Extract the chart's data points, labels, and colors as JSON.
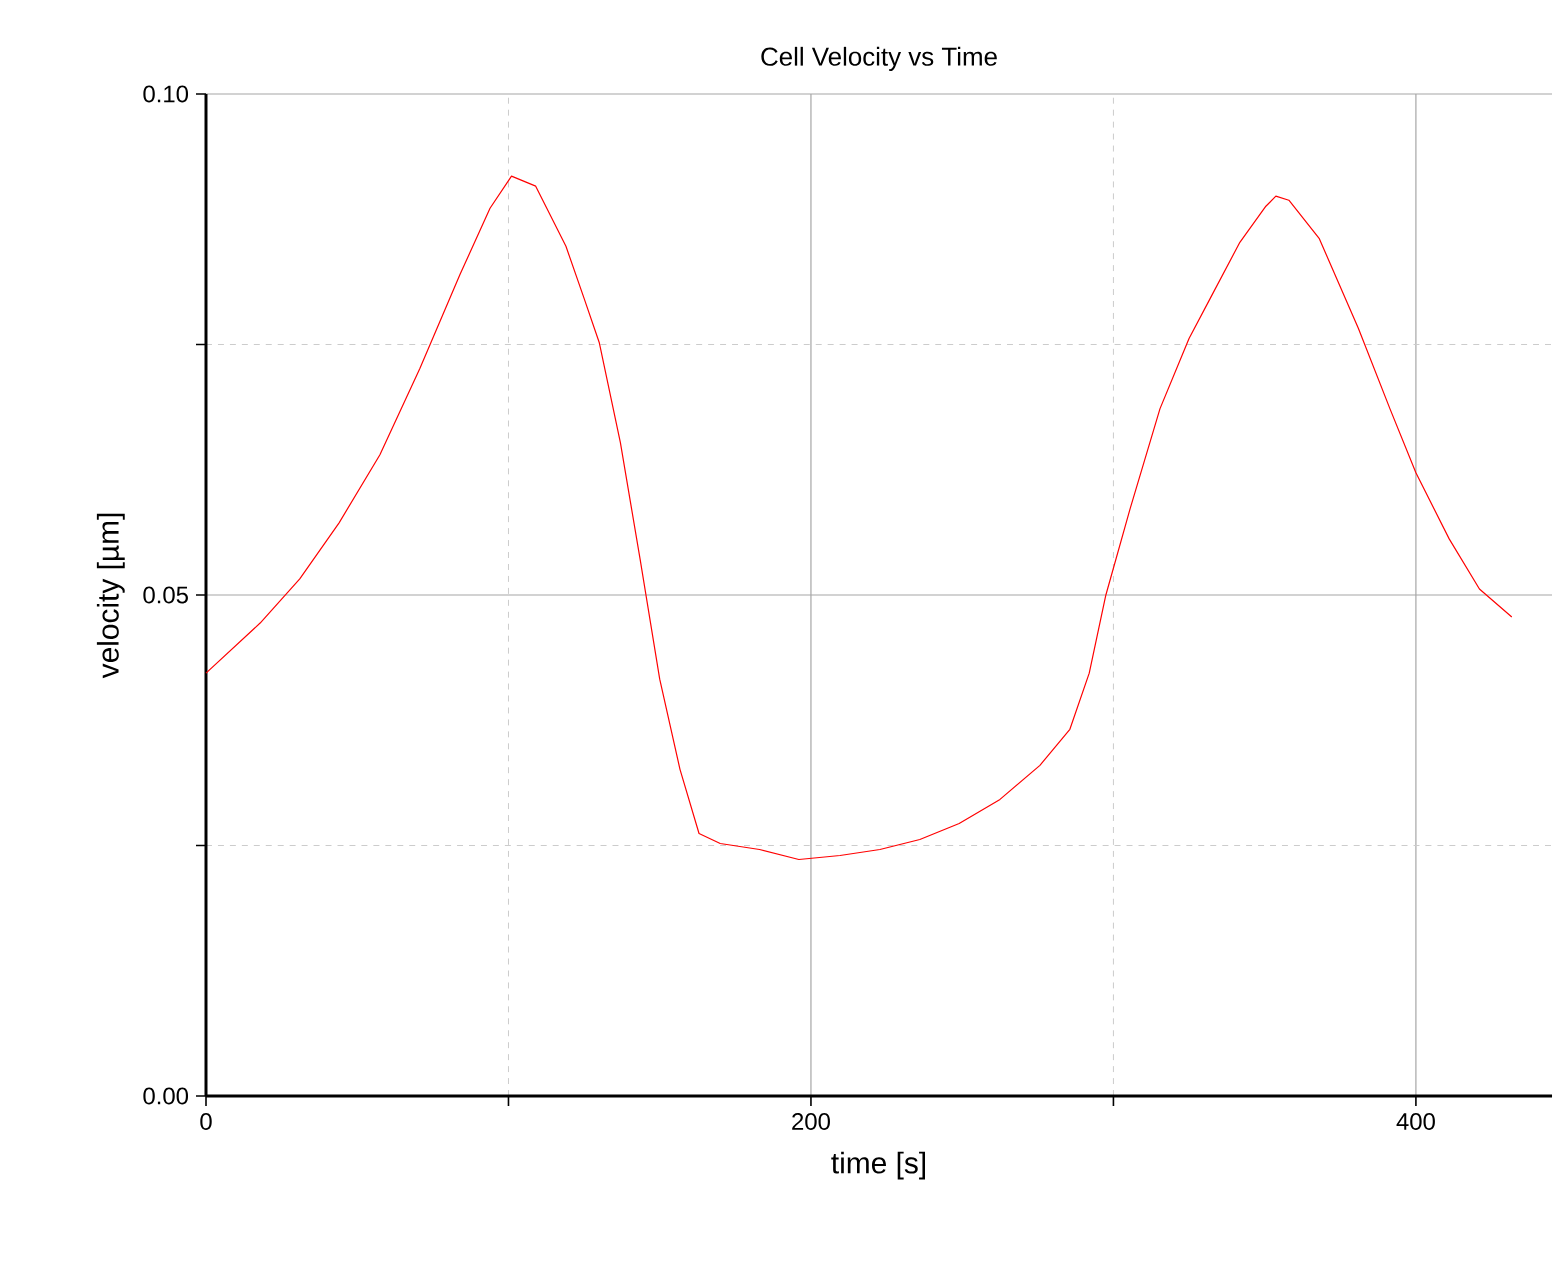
{
  "chart_data": {
    "type": "line",
    "title": "Cell Velocity vs Time",
    "xlabel": "time [s]",
    "ylabel": "velocity [µm]",
    "xlim": [
      0,
      445
    ],
    "ylim": [
      0,
      0.1
    ],
    "xticks": [
      0,
      {
        "value": 100,
        "label": null
      },
      200,
      {
        "value": 300,
        "label": null
      },
      400
    ],
    "yticks": [
      {
        "value": 0,
        "label": "0.00"
      },
      {
        "value": 0.025,
        "label": null
      },
      {
        "value": 0.05,
        "label": "0.05"
      },
      {
        "value": 0.075,
        "label": null
      },
      {
        "value": 0.1,
        "label": "0.10"
      }
    ],
    "grid": true,
    "marker": "none",
    "line_style": "solid",
    "series": [
      {
        "color": "#ff0000",
        "x": [
          0,
          17.9,
          31,
          44,
          57.5,
          70.7,
          84,
          93.9,
          101,
          109,
          119,
          125,
          130,
          137,
          143.5,
          150,
          156.7,
          163,
          170,
          183,
          196,
          209.6,
          222.8,
          236,
          249,
          262.5,
          275.7,
          285.6,
          292,
          297.5,
          305.5,
          315.4,
          325,
          332,
          341.8,
          350.4,
          353.7,
          358,
          368,
          381,
          391.4,
          400,
          411,
          421,
          431.7
        ],
        "values": [
          0.0422,
          0.0472,
          0.0516,
          0.0572,
          0.064,
          0.0726,
          0.082,
          0.0886,
          0.0918,
          0.0908,
          0.0848,
          0.0796,
          0.0752,
          0.0652,
          0.0536,
          0.0416,
          0.0326,
          0.0262,
          0.0252,
          0.0246,
          0.0236,
          0.024,
          0.0246,
          0.0256,
          0.0272,
          0.0296,
          0.033,
          0.0366,
          0.0422,
          0.05,
          0.0586,
          0.0686,
          0.0756,
          0.0796,
          0.0852,
          0.0888,
          0.0898,
          0.0894,
          0.0856,
          0.0766,
          0.0686,
          0.0622,
          0.0556,
          0.0506,
          0.0478
        ]
      }
    ]
  }
}
